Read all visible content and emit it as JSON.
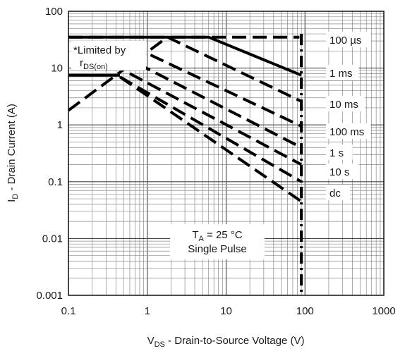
{
  "chart_data": {
    "type": "line",
    "x_scale": "log",
    "y_scale": "log",
    "xlim": [
      0.1,
      1000
    ],
    "ylim": [
      0.001,
      100
    ],
    "grid": true,
    "xlabel_main": "V",
    "xlabel_sub": "DS",
    "xlabel_rest": " - Drain-to-Source Voltage (V)",
    "ylabel_main": "I",
    "ylabel_sub": "D",
    "ylabel_rest": " - Drain Current (A)",
    "x_ticks": [
      {
        "value": 0.1,
        "label": "0.1"
      },
      {
        "value": 1,
        "label": "1"
      },
      {
        "value": 10,
        "label": "10"
      },
      {
        "value": 100,
        "label": "100"
      },
      {
        "value": 1000,
        "label": "1000"
      }
    ],
    "y_ticks": [
      {
        "value": 100,
        "label": "100"
      },
      {
        "value": 10,
        "label": "10"
      },
      {
        "value": 1,
        "label": "1"
      },
      {
        "value": 0.1,
        "label": "0.1"
      },
      {
        "value": 0.01,
        "label": "0.01"
      },
      {
        "value": 0.001,
        "label": "0.001"
      }
    ],
    "series": [
      {
        "name": "100 µs",
        "style": "solid",
        "points": [
          [
            0.1,
            35
          ],
          [
            6,
            35
          ],
          [
            90,
            7.5
          ]
        ]
      },
      {
        "name": "1 ms",
        "style": "dashed",
        "points": [
          [
            1.8,
            35
          ],
          [
            90,
            2.6
          ]
        ]
      },
      {
        "name": "10 ms",
        "style": "dashed",
        "points": [
          [
            1.1,
            17
          ],
          [
            90,
            0.95
          ]
        ]
      },
      {
        "name": "100 ms",
        "style": "dashed",
        "points": [
          [
            0.75,
            12
          ],
          [
            90,
            0.4
          ]
        ]
      },
      {
        "name": "1 s",
        "style": "dashed",
        "points": [
          [
            0.6,
            8
          ],
          [
            90,
            0.2
          ]
        ]
      },
      {
        "name": "10 s",
        "style": "dashed",
        "points": [
          [
            0.45,
            7
          ],
          [
            90,
            0.1
          ]
        ]
      },
      {
        "name": "dc",
        "style": "dashed",
        "points": [
          [
            0.45,
            7
          ],
          [
            90,
            0.045
          ]
        ]
      }
    ],
    "limit_line": {
      "style": "solid",
      "points": [
        [
          0.1,
          7.5
        ],
        [
          0.45,
          7.5
        ]
      ]
    },
    "rds_on_line": {
      "style": "dashed",
      "points": [
        [
          0.1,
          1.8
        ],
        [
          1.8,
          35
        ]
      ]
    },
    "current_limit": {
      "style": "dashed",
      "value": 35,
      "from": 0.1,
      "to": 85
    },
    "bvdss": {
      "style": "dashdot",
      "value": 90
    },
    "series_labels": [
      {
        "text": "100 µs",
        "series": "100 µs"
      },
      {
        "text": "1 ms",
        "series": "1 ms"
      },
      {
        "text": "10 ms",
        "series": "10 ms"
      },
      {
        "text": "100 ms",
        "series": "100 ms"
      },
      {
        "text": "1 s",
        "series": "1 s"
      },
      {
        "text": "10 s",
        "series": "10 s"
      },
      {
        "text": "dc",
        "series": "dc"
      }
    ],
    "annotations": {
      "limited_by_line1": "*Limited by",
      "limited_by_r": "r",
      "limited_by_sub": "DS(on)",
      "ta_main": "T",
      "ta_sub": "A",
      "ta_rest": " = 25 °C",
      "pulse": "Single Pulse"
    }
  }
}
